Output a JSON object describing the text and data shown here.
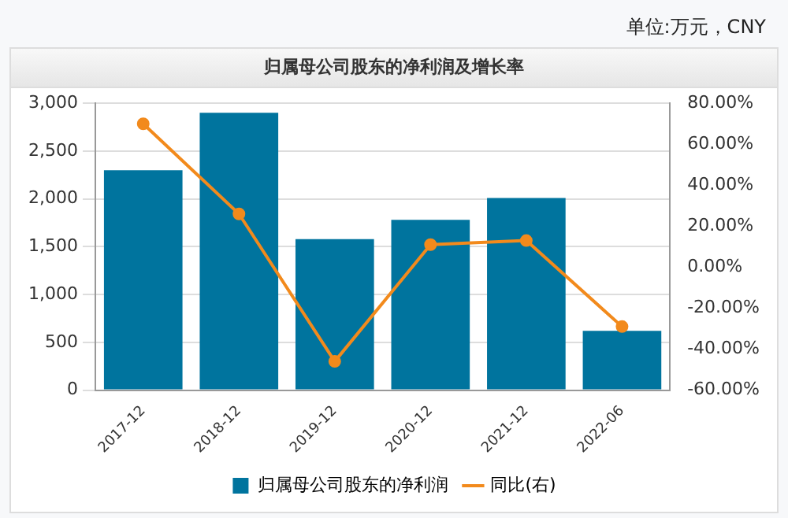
{
  "chart_data": {
    "type": "bar",
    "title": "归属母公司股东的净利润及增长率",
    "annotations": [
      "单位:万元，CNY"
    ],
    "categories": [
      "2017-12",
      "2018-12",
      "2019-12",
      "2020-12",
      "2021-12",
      "2022-06"
    ],
    "series": [
      {
        "name": "归属母公司股东的净利润",
        "color": "#00749e",
        "values": [
          2300,
          2900,
          1580,
          1780,
          2010,
          620
        ]
      },
      {
        "name": "同比(右)",
        "type": "line",
        "axis": "y2",
        "color": "#f28a1c",
        "marker": "circle",
        "values": [
          70,
          26,
          -46,
          11,
          13,
          -29
        ]
      }
    ],
    "ylim": [
      0,
      3000
    ],
    "yticks": [
      {
        "value": 0,
        "label": "0"
      },
      {
        "value": 500,
        "label": "500"
      },
      {
        "value": 1000,
        "label": "1,000"
      },
      {
        "value": 1500,
        "label": "1,500"
      },
      {
        "value": 2000,
        "label": "2,000"
      },
      {
        "value": 2500,
        "label": "2,500"
      },
      {
        "value": 3000,
        "label": "3,000"
      }
    ],
    "y2lim": [
      -60,
      80
    ],
    "y2ticks": [
      {
        "value": -60,
        "label": "-60.00%"
      },
      {
        "value": -40,
        "label": "-40.00%"
      },
      {
        "value": -20,
        "label": "-20.00%"
      },
      {
        "value": 0,
        "label": "0.00%"
      },
      {
        "value": 20,
        "label": "20.00%"
      },
      {
        "value": 40,
        "label": "40.00%"
      },
      {
        "value": 60,
        "label": "60.00%"
      },
      {
        "value": 80,
        "label": "80.00%"
      }
    ],
    "grid": "y",
    "legend": "bottom"
  }
}
